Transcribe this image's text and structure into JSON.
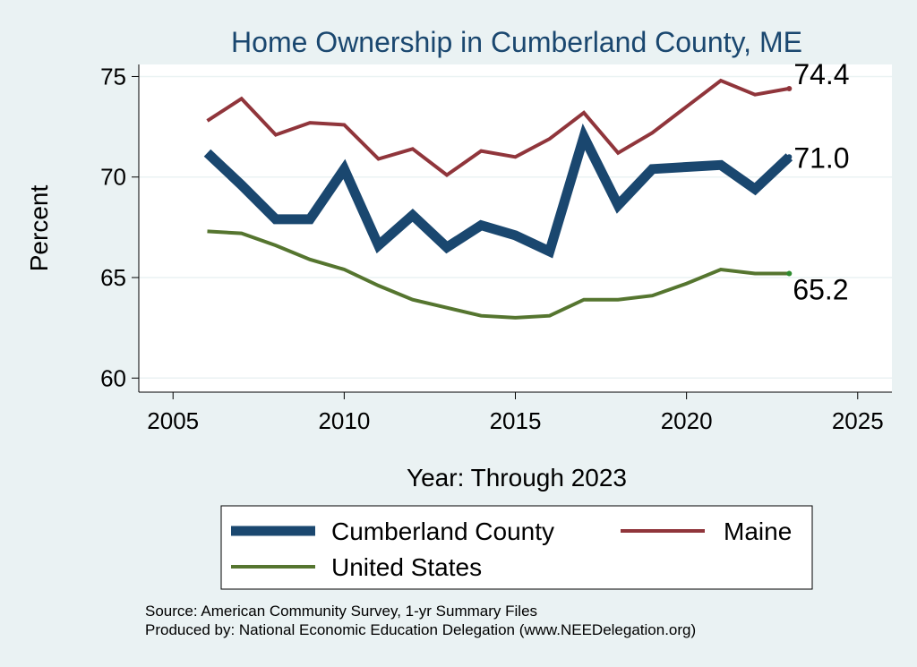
{
  "chart_data": {
    "type": "line",
    "title": "Home Ownership in Cumberland County, ME",
    "xlabel": "Year: Through 2023",
    "ylabel": "Percent",
    "xlim": [
      2004,
      2026
    ],
    "ylim": [
      59.3,
      75.6
    ],
    "xticks": [
      2005,
      2010,
      2015,
      2020,
      2025
    ],
    "yticks": [
      60,
      65,
      70,
      75
    ],
    "grid": true,
    "legend_position": "bottom",
    "x": [
      2006,
      2007,
      2008,
      2009,
      2010,
      2011,
      2012,
      2013,
      2014,
      2015,
      2016,
      2017,
      2018,
      2019,
      2020,
      2021,
      2022,
      2023
    ],
    "series": [
      {
        "name": "Cumberland County",
        "color": "#1a476f",
        "end_label": "71.0",
        "values": [
          71.2,
          69.6,
          67.9,
          67.9,
          70.4,
          66.6,
          68.1,
          66.5,
          67.6,
          67.1,
          66.3,
          72.0,
          68.6,
          70.4,
          70.5,
          70.6,
          69.4,
          71.0
        ]
      },
      {
        "name": "Maine",
        "color": "#90353b",
        "end_label": "74.4",
        "values": [
          72.8,
          73.9,
          72.1,
          72.7,
          72.6,
          70.9,
          71.4,
          70.1,
          71.3,
          71.0,
          71.9,
          73.2,
          71.2,
          72.2,
          73.5,
          74.8,
          74.1,
          74.4
        ]
      },
      {
        "name": "United States",
        "color": "#55752f",
        "end_label": "65.2",
        "values": [
          67.3,
          67.2,
          66.6,
          65.9,
          65.4,
          64.6,
          63.9,
          63.5,
          63.1,
          63.0,
          63.1,
          63.9,
          63.9,
          64.1,
          64.7,
          65.4,
          65.2,
          65.2
        ]
      }
    ]
  },
  "notes": {
    "source": "Source: American Community Survey, 1-yr Summary Files",
    "produced": "Produced by: National Economic Education Delegation (www.NEEDelegation.org)"
  }
}
